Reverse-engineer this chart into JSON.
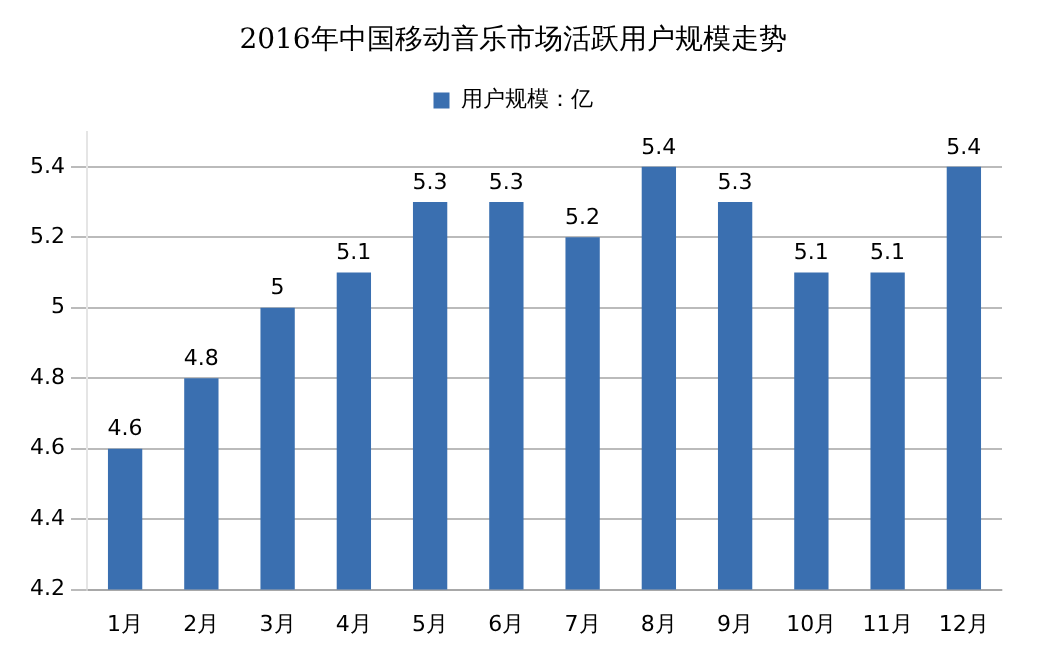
{
  "chart_data": {
    "type": "bar",
    "title": "2016年中国移动音乐市场活跃用户规模走势",
    "categories": [
      "1月",
      "2月",
      "3月",
      "4月",
      "5月",
      "6月",
      "7月",
      "8月",
      "9月",
      "10月",
      "11月",
      "12月"
    ],
    "series": [
      {
        "name": "用户规模：亿",
        "color": "#3a6fb0",
        "values": [
          4.6,
          4.8,
          5,
          5.1,
          5.3,
          5.3,
          5.2,
          5.4,
          5.3,
          5.1,
          5.1,
          5.4
        ]
      }
    ],
    "ylim": [
      4.2,
      5.5
    ],
    "yticks": [
      4.2,
      4.4,
      4.6,
      4.8,
      5,
      5.2,
      5.4
    ],
    "grid": "y",
    "legend": "top",
    "data_labels": true
  }
}
